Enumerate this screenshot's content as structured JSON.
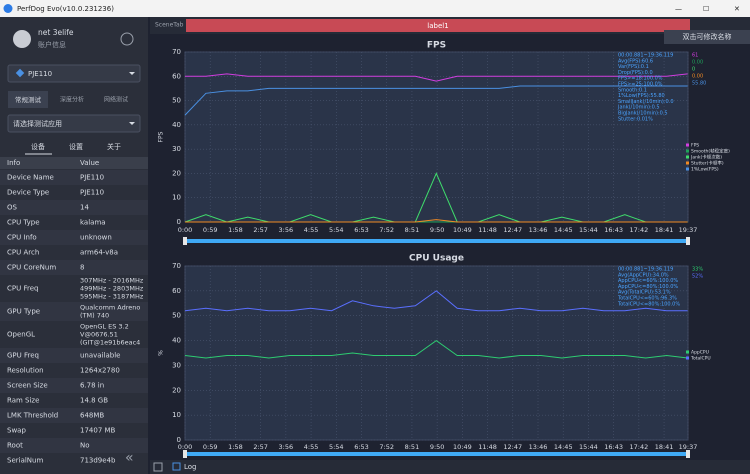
{
  "window": {
    "title": "PerfDog Evo(v10.0.231236)",
    "minimize": "—",
    "maximize": "☐",
    "close": "✕"
  },
  "sidebar": {
    "user": "net 3elife",
    "account": "账户信息",
    "device": "PJE110",
    "tabs": [
      "常规测试",
      "深度分析",
      "网络测试"
    ],
    "app_select": "请选择测试应用",
    "subtabs": [
      "设备",
      "设置",
      "关于"
    ],
    "header": [
      "Info",
      "Value"
    ],
    "rows": [
      [
        "Device Name",
        "PJE110"
      ],
      [
        "Device Type",
        "PJE110"
      ],
      [
        "OS",
        "14"
      ],
      [
        "CPU Type",
        "kalama"
      ],
      [
        "CPU Info",
        "unknown"
      ],
      [
        "CPU Arch",
        "arm64-v8a"
      ],
      [
        "CPU CoreNum",
        "8"
      ],
      [
        "CPU Freq",
        [
          "307MHz - 2016MHz",
          "499MHz - 2803MHz",
          "595MHz - 3187MHz"
        ]
      ],
      [
        "GPU Type",
        [
          "Qualcomm Adreno",
          "(TM) 740"
        ]
      ],
      [
        "OpenGL",
        [
          "OpenGL ES 3.2",
          "V@0676.51",
          "(GIT@1e91b6eac4"
        ]
      ],
      [
        "GPU Freq",
        "unavailable"
      ],
      [
        "Resolution",
        "1264x2780"
      ],
      [
        "Screen Size",
        "6.78 in"
      ],
      [
        "Ram Size",
        "14.8 GB"
      ],
      [
        "LMK Threshold",
        "648MB"
      ],
      [
        "Swap",
        "17407 MB"
      ],
      [
        "Root",
        "No"
      ],
      [
        "SerialNum",
        "713d9e4b"
      ]
    ]
  },
  "topbar": {
    "scene_tab": "SceneTab",
    "label": "label1",
    "tooltip": "双击可修改名称"
  },
  "bottombar": {
    "log": "Log"
  },
  "chart_data": [
    {
      "type": "line",
      "title": "FPS",
      "ylabel": "FPS",
      "x": [
        0,
        49,
        98,
        147,
        196,
        245,
        294,
        343,
        392,
        441,
        490,
        539,
        588,
        637,
        686,
        735,
        784,
        833,
        882,
        931,
        980,
        1029,
        1078,
        1127,
        1176
      ],
      "xlim": [
        0,
        1177
      ],
      "xticks": [
        {
          "value": 0,
          "label": "0:00"
        },
        {
          "value": 59,
          "label": "0:59"
        },
        {
          "value": 118,
          "label": "1:58"
        },
        {
          "value": 177,
          "label": "2:57"
        },
        {
          "value": 236,
          "label": "3:56"
        },
        {
          "value": 295,
          "label": "4:55"
        },
        {
          "value": 354,
          "label": "5:54"
        },
        {
          "value": 413,
          "label": "6:53"
        },
        {
          "value": 472,
          "label": "7:52"
        },
        {
          "value": 531,
          "label": "8:51"
        },
        {
          "value": 590,
          "label": "9:50"
        },
        {
          "value": 649,
          "label": "10:49"
        },
        {
          "value": 708,
          "label": "11:48"
        },
        {
          "value": 767,
          "label": "12:47"
        },
        {
          "value": 826,
          "label": "13:46"
        },
        {
          "value": 885,
          "label": "14:45"
        },
        {
          "value": 944,
          "label": "15:44"
        },
        {
          "value": 1003,
          "label": "16:43"
        },
        {
          "value": 1062,
          "label": "17:42"
        },
        {
          "value": 1121,
          "label": "18:41"
        },
        {
          "value": 1177,
          "label": "19:37"
        }
      ],
      "ylim": [
        0,
        70
      ],
      "yticks": [
        0,
        10,
        20,
        30,
        40,
        50,
        60,
        70
      ],
      "grid": true,
      "stats": [
        "00:00.881~19:36.119",
        "Avg(FPS):60.6",
        "Var(FPS):0.1",
        "Drop(FPS):0.0",
        "FPS>=18:100.0%",
        "FPS>=25:100.0%",
        "Smooth:0.1",
        "1%Low(FPS):55.80",
        "SmallJank(/10min):0.0",
        "Jank(/10min):0.5",
        "BigJank(/10min):0.5",
        "Stutter:0.01%"
      ],
      "series": [
        {
          "name": "FPS",
          "color": "#d23ee0",
          "current": "61",
          "values": [
            60,
            60,
            61,
            60,
            60,
            60,
            60,
            60,
            60,
            60,
            60,
            60,
            58,
            60,
            60,
            60,
            60,
            60,
            60,
            60,
            60,
            60,
            60,
            60,
            61
          ]
        },
        {
          "name": "Smooth(帧稳定度)",
          "color": "#1fa35a",
          "current": "0.00",
          "values": [
            0,
            0,
            0,
            0,
            0,
            0,
            0,
            0,
            0,
            0,
            0,
            0,
            0,
            0,
            0,
            0,
            0,
            0,
            0,
            0,
            0,
            0,
            0,
            0,
            0
          ]
        },
        {
          "name": "Jank(卡顿次数)",
          "color": "#3fdc6c",
          "current": "0",
          "values": [
            0,
            3,
            0,
            2,
            0,
            0,
            3,
            0,
            0,
            2,
            0,
            0,
            20,
            0,
            0,
            3,
            0,
            0,
            2,
            0,
            0,
            3,
            0,
            0,
            0
          ]
        },
        {
          "name": "Stutter(卡顿率)",
          "color": "#f08a24",
          "current": "0.00",
          "values": [
            0,
            0,
            0,
            0,
            0,
            0,
            0,
            0,
            0,
            0,
            0,
            0,
            1,
            0,
            0,
            0,
            0,
            0,
            0,
            0,
            0,
            0,
            0,
            0,
            0
          ]
        },
        {
          "name": "1%Low(FPS)",
          "color": "#4a90e2",
          "current": "55.80",
          "values": [
            44,
            53,
            54,
            54,
            55,
            55,
            55,
            55,
            55,
            55,
            55,
            55,
            55,
            55,
            55,
            55,
            56,
            56,
            56,
            56,
            56,
            56,
            56,
            56,
            56
          ]
        }
      ]
    },
    {
      "type": "line",
      "title": "CPU Usage",
      "ylabel": "%",
      "x": [
        0,
        49,
        98,
        147,
        196,
        245,
        294,
        343,
        392,
        441,
        490,
        539,
        588,
        637,
        686,
        735,
        784,
        833,
        882,
        931,
        980,
        1029,
        1078,
        1127,
        1176
      ],
      "xlim": [
        0,
        1177
      ],
      "xticks": [
        {
          "value": 0,
          "label": "0:00"
        },
        {
          "value": 59,
          "label": "0:59"
        },
        {
          "value": 118,
          "label": "1:58"
        },
        {
          "value": 177,
          "label": "2:57"
        },
        {
          "value": 236,
          "label": "3:56"
        },
        {
          "value": 295,
          "label": "4:55"
        },
        {
          "value": 354,
          "label": "5:54"
        },
        {
          "value": 413,
          "label": "6:53"
        },
        {
          "value": 472,
          "label": "7:52"
        },
        {
          "value": 531,
          "label": "8:51"
        },
        {
          "value": 590,
          "label": "9:50"
        },
        {
          "value": 649,
          "label": "10:49"
        },
        {
          "value": 708,
          "label": "11:48"
        },
        {
          "value": 767,
          "label": "12:47"
        },
        {
          "value": 826,
          "label": "13:46"
        },
        {
          "value": 885,
          "label": "14:45"
        },
        {
          "value": 944,
          "label": "15:44"
        },
        {
          "value": 1003,
          "label": "16:43"
        },
        {
          "value": 1062,
          "label": "17:42"
        },
        {
          "value": 1121,
          "label": "18:41"
        },
        {
          "value": 1177,
          "label": "19:37"
        }
      ],
      "ylim": [
        0,
        70
      ],
      "yticks": [
        0,
        10,
        20,
        30,
        40,
        50,
        60,
        70
      ],
      "grid": true,
      "stats": [
        "00:00.881~19:36.119",
        "Avg(AppCPU):34.0%",
        "AppCPU<=60%:100.0%",
        "AppCPU<=80%:100.0%",
        "Avg(TotalCPU):53.1%",
        "TotalCPU<=60%:96.3%",
        "TotalCPU<=80%:100.0%"
      ],
      "series": [
        {
          "name": "AppCPU",
          "color": "#2ecc71",
          "current": "33%",
          "values": [
            34,
            33,
            34,
            34,
            33,
            34,
            34,
            34,
            35,
            34,
            34,
            34,
            40,
            34,
            34,
            33,
            34,
            34,
            33,
            34,
            34,
            34,
            33,
            34,
            33
          ]
        },
        {
          "name": "TotalCPU",
          "color": "#5a6fff",
          "current": "52%",
          "values": [
            52,
            53,
            52,
            53,
            52,
            52,
            53,
            52,
            56,
            54,
            53,
            54,
            60,
            53,
            52,
            52,
            53,
            52,
            52,
            53,
            52,
            52,
            53,
            52,
            52
          ]
        }
      ]
    }
  ]
}
